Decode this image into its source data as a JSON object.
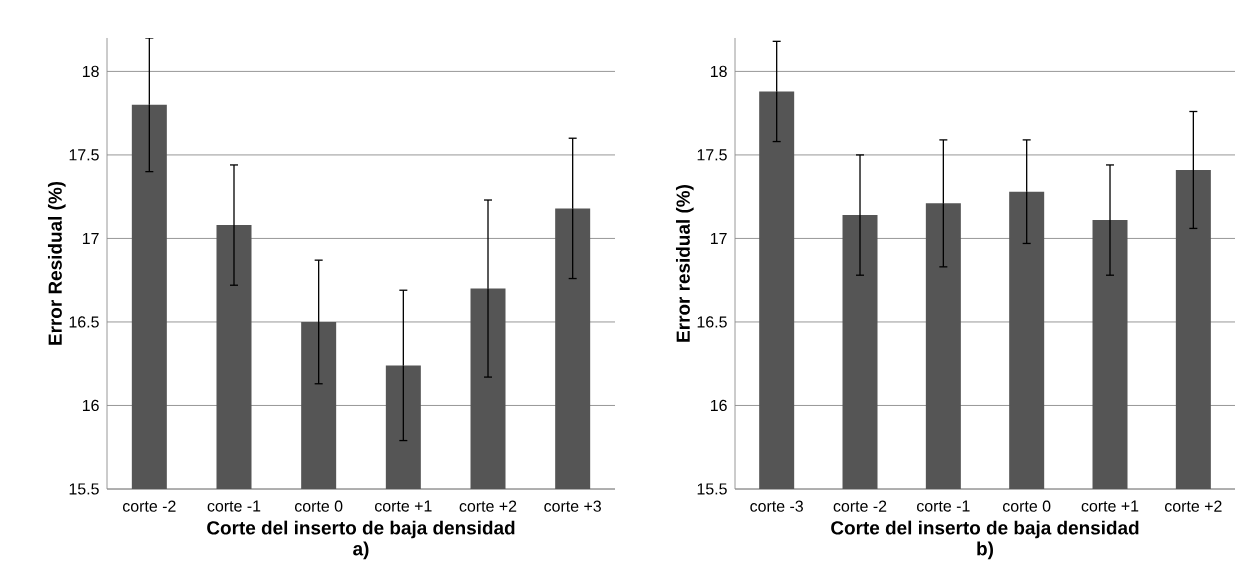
{
  "chart_data": [
    {
      "type": "bar",
      "categories": [
        "corte -2",
        "corte -1",
        "corte 0",
        "corte +1",
        "corte +2",
        "corte +3"
      ],
      "values": [
        17.8,
        17.08,
        16.5,
        16.24,
        16.7,
        17.18
      ],
      "errors": [
        0.4,
        0.36,
        0.37,
        0.45,
        0.53,
        0.42
      ],
      "color": "#555555",
      "ylim": [
        15.5,
        18.2
      ],
      "yticks": [
        15.5,
        16,
        16.5,
        17,
        17.5,
        18
      ],
      "grid": "y",
      "xlabel": "Corte del inserto de baja densidad",
      "ylabel": "Error Residual (%)",
      "annotations": [
        "a)"
      ]
    },
    {
      "type": "bar",
      "categories": [
        "corte -3",
        "corte -2",
        "corte -1",
        "corte 0",
        "corte +1",
        "corte +2"
      ],
      "values": [
        17.88,
        17.14,
        17.21,
        17.28,
        17.11,
        17.41
      ],
      "errors": [
        0.3,
        0.36,
        0.38,
        0.31,
        0.33,
        0.35
      ],
      "color": "#555555",
      "ylim": [
        15.5,
        18.2
      ],
      "yticks": [
        15.5,
        16,
        16.5,
        17,
        17.5,
        18
      ],
      "grid": "y",
      "xlabel": "Corte del inserto de baja densidad",
      "ylabel": "Error residual (%)",
      "annotations": [
        "b)"
      ]
    }
  ]
}
